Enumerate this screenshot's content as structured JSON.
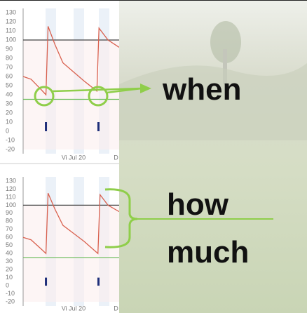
{
  "chart_data": [
    {
      "type": "line",
      "series": [
        {
          "color": "#d9614f",
          "x": [
            -0.95,
            -0.8,
            -0.6,
            -0.52,
            -0.48,
            -0.35,
            -0.2,
            0,
            0.2,
            0.44,
            0.48,
            0.65,
            0.86
          ],
          "values": [
            60,
            57,
            45,
            40,
            115,
            95,
            75,
            65,
            55,
            44,
            113,
            100,
            92
          ]
        },
        {
          "type": "bar",
          "color": "#1f2f7a",
          "x": [
            -0.52,
            0.47
          ],
          "values": [
            10,
            10
          ]
        }
      ],
      "reference_lines": [
        {
          "value": 100,
          "color": "#444444"
        },
        {
          "value": 35,
          "color": "#66bb55"
        }
      ],
      "xlim": [
        -0.95,
        0.86
      ],
      "ylim": [
        -20,
        130
      ],
      "yticks": [
        130,
        120,
        110,
        100,
        90,
        80,
        70,
        60,
        50,
        40,
        30,
        20,
        10,
        0,
        -10,
        -20
      ],
      "xticks": [
        {
          "value": 0,
          "label": "Vi Jul 20"
        },
        {
          "value": 0.8,
          "label": "D"
        }
      ]
    },
    {
      "type": "line",
      "series": [
        {
          "color": "#d9614f",
          "x": [
            -0.95,
            -0.8,
            -0.6,
            -0.52,
            -0.48,
            -0.35,
            -0.2,
            0,
            0.2,
            0.46,
            0.5,
            0.65,
            0.86
          ],
          "values": [
            60,
            57,
            45,
            40,
            115,
            95,
            75,
            65,
            55,
            40,
            113,
            100,
            92
          ]
        },
        {
          "type": "bar",
          "color": "#1f2f7a",
          "x": [
            -0.52,
            0.47
          ],
          "values": [
            10,
            10
          ]
        }
      ],
      "reference_lines": [
        {
          "value": 100,
          "color": "#444444"
        },
        {
          "value": 35,
          "color": "#66bb55"
        }
      ],
      "xlim": [
        -0.95,
        0.86
      ],
      "ylim": [
        -20,
        130
      ],
      "yticks": [
        130,
        120,
        110,
        100,
        90,
        80,
        70,
        60,
        50,
        40,
        30,
        20,
        10,
        0,
        -10,
        -20
      ],
      "xticks": [
        {
          "value": 0,
          "label": "Vi Jul 20"
        },
        {
          "value": 0.8,
          "label": "D"
        }
      ]
    }
  ],
  "annotations": {
    "when": "when",
    "how_much": [
      "how",
      "much"
    ]
  }
}
